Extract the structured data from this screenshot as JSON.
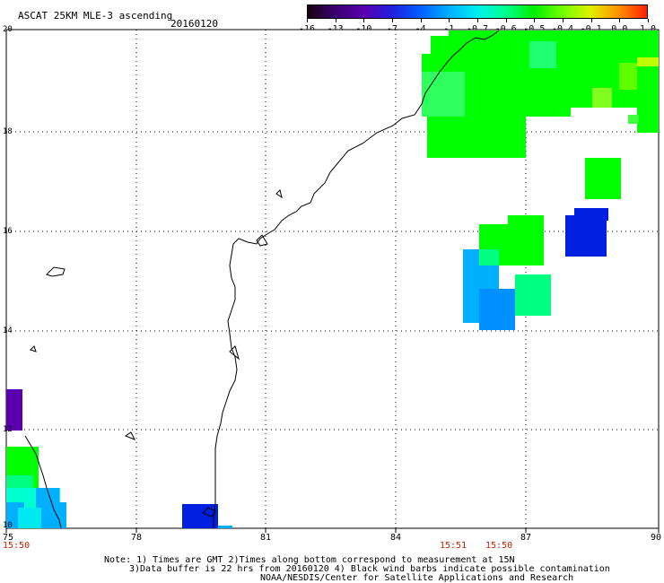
{
  "header": {
    "title": "ASCAT 25KM MLE-3 ascending",
    "date": "20160120"
  },
  "colorbar": {
    "tick_labels": [
      "-16",
      "-13",
      "-10",
      "-7",
      "-4",
      "-1",
      "-0.7",
      "-0.6",
      "-0.5",
      "-0.4",
      "-0.1",
      "0.0",
      "1.0"
    ],
    "stops": [
      "#1a0010",
      "#3a0070",
      "#5a00b0",
      "#2020e0",
      "#0060ff",
      "#00b0ff",
      "#00f0f0",
      "#00ff90",
      "#00f000",
      "#70ff00",
      "#e0f000",
      "#ff9000",
      "#ff2000"
    ]
  },
  "axes": {
    "x_tick_labels": [
      "75",
      "78",
      "81",
      "84",
      "87",
      "90"
    ],
    "y_tick_labels": [
      "20",
      "18",
      "16",
      "14",
      "12",
      "10"
    ],
    "time_labels": [
      "15:50",
      "15:51",
      "15:50"
    ]
  },
  "notes": {
    "line1": "Note: 1) Times are GMT 2)Times along bottom correspond to measurement at 15N",
    "line2": "3)Data buffer is 22 hrs from 20160120 4) Black wind barbs indicate possible contamination",
    "line3": "NOAA/NESDIS/Center for Satellite Applications and Research"
  },
  "map": {
    "region": "Bay of Bengal / east coast of India",
    "colors": {
      "green": "#00ff00",
      "light_green": "#30ff60",
      "seafoam": "#00ff80",
      "cyan": "#00ffd0",
      "sky_blue": "#00b0ff",
      "blue": "#0080ff",
      "deep_blue": "#0020e0",
      "purple": "#5a00b0",
      "yellow_green": "#c0ff00"
    }
  }
}
